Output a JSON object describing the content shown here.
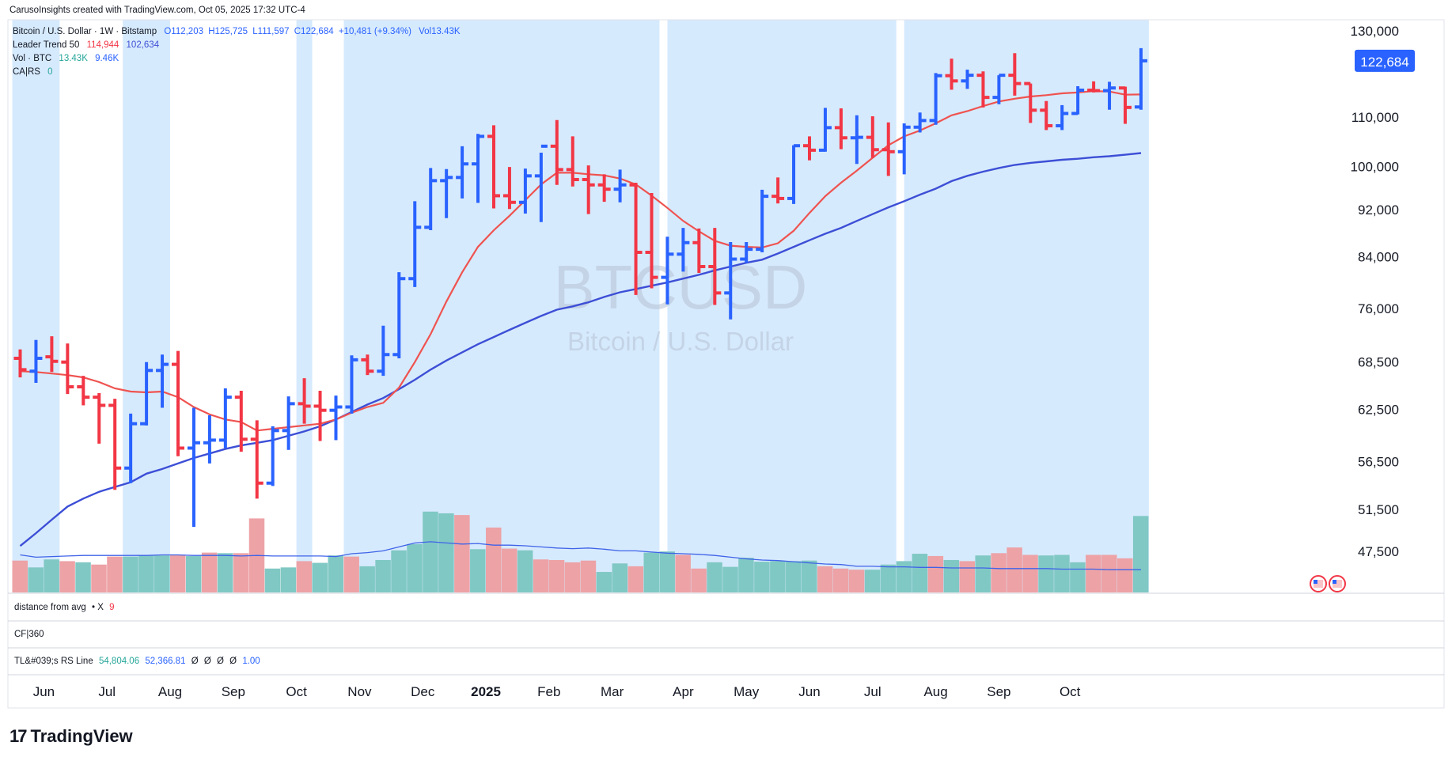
{
  "header": {
    "attribution": "CarusoInsights created with TradingView.com, Oct 05, 2025 17:32 UTC-4"
  },
  "legend": {
    "symbol": "Bitcoin / U.S. Dollar · 1W · Bitstamp",
    "ohlc": {
      "o": "O112,203",
      "h": "H125,725",
      "l": "L111,597",
      "c": "C122,684",
      "chg": "+10,481 (+9.34%)",
      "vol": "Vol13.43K"
    },
    "leader_trend": {
      "label": "Leader Trend 50",
      "v1": "114,944",
      "v2": "102,634"
    },
    "vol_btc": {
      "label": "Vol · BTC",
      "v1": "13.43K",
      "v2": "9.46K"
    },
    "cars": {
      "label": "CA|RS",
      "v1": "0"
    }
  },
  "watermark": {
    "symbol": "BTCUSD",
    "name": "Bitcoin / U.S. Dollar"
  },
  "price_axis": {
    "ticks": [
      "130,000",
      "110,000",
      "100,000",
      "92,000",
      "84,000",
      "76,000",
      "68,500",
      "62,500",
      "56,500",
      "51,500",
      "47,500"
    ],
    "tick_values": [
      130000,
      110000,
      100000,
      92000,
      84000,
      76000,
      68500,
      62500,
      56500,
      51500,
      47500
    ],
    "last_price_label": "122,684"
  },
  "time_axis": {
    "labels": [
      "Jun",
      "Jul",
      "Aug",
      "Sep",
      "Oct",
      "Nov",
      "Dec",
      "2025",
      "Feb",
      "Mar",
      "Apr",
      "May",
      "Jun",
      "Jul",
      "Aug",
      "Sep",
      "Oct"
    ],
    "label_bar_index": [
      1.5,
      5.5,
      9.5,
      13.5,
      17.5,
      21.5,
      25.5,
      29.5,
      33.5,
      37.5,
      42,
      46,
      50,
      54,
      58,
      62,
      66.5
    ]
  },
  "panes": {
    "distance": {
      "label": "distance from avg",
      "suffix": "• X",
      "value": "9"
    },
    "cf": {
      "label": "CF|360"
    },
    "tl_rs": {
      "label": "TL&#039;s RS Line",
      "v1": "54,804.06",
      "v2": "52,366.81",
      "v3": "Ø",
      "v4": "Ø",
      "v5": "Ø",
      "v6": "Ø",
      "v7": "1.00"
    }
  },
  "footer": {
    "brand": "TradingView",
    "brand_mark": "17"
  },
  "colors": {
    "up": "#2962ff",
    "down": "#f23645",
    "ma_short": "#ef5350",
    "ma_long": "#3d4fd6",
    "vol_up": "#80c8c4",
    "vol_down": "#eda2a6",
    "highlight": "#d6eafd",
    "vol_ma": "#3f63e8"
  },
  "chart_data": {
    "type": "ohlc",
    "title": "Bitcoin / U.S. Dollar · 1W · Bitstamp",
    "interval": "1W",
    "ylim": [
      44000,
      132000
    ],
    "y_scale": "log",
    "grid": false,
    "bars": [
      {
        "o": 69000,
        "h": 70200,
        "l": 66500,
        "c": 67500
      },
      {
        "o": 67300,
        "h": 71500,
        "l": 65800,
        "c": 69000
      },
      {
        "o": 69200,
        "h": 72000,
        "l": 67200,
        "c": 68600
      },
      {
        "o": 68500,
        "h": 71000,
        "l": 64400,
        "c": 65300
      },
      {
        "o": 65300,
        "h": 66700,
        "l": 63000,
        "c": 64000
      },
      {
        "o": 64000,
        "h": 64500,
        "l": 58500,
        "c": 63000
      },
      {
        "o": 63000,
        "h": 63800,
        "l": 53500,
        "c": 55800
      },
      {
        "o": 55800,
        "h": 62000,
        "l": 54200,
        "c": 60800
      },
      {
        "o": 60800,
        "h": 68500,
        "l": 60600,
        "c": 67400
      },
      {
        "o": 67400,
        "h": 69500,
        "l": 62700,
        "c": 68200
      },
      {
        "o": 68200,
        "h": 70000,
        "l": 57100,
        "c": 58000
      },
      {
        "o": 58000,
        "h": 62700,
        "l": 49800,
        "c": 58600
      },
      {
        "o": 58600,
        "h": 61800,
        "l": 56300,
        "c": 58900
      },
      {
        "o": 58900,
        "h": 65100,
        "l": 58000,
        "c": 64000
      },
      {
        "o": 64000,
        "h": 64800,
        "l": 57600,
        "c": 59000
      },
      {
        "o": 59000,
        "h": 61200,
        "l": 52600,
        "c": 54200
      },
      {
        "o": 54200,
        "h": 60500,
        "l": 53900,
        "c": 60000
      },
      {
        "o": 60000,
        "h": 64100,
        "l": 57800,
        "c": 63200
      },
      {
        "o": 63200,
        "h": 66400,
        "l": 60800,
        "c": 62900
      },
      {
        "o": 62900,
        "h": 64800,
        "l": 58800,
        "c": 62400
      },
      {
        "o": 62400,
        "h": 64200,
        "l": 58900,
        "c": 62800
      },
      {
        "o": 62800,
        "h": 69400,
        "l": 62000,
        "c": 68800
      },
      {
        "o": 68800,
        "h": 69500,
        "l": 66800,
        "c": 67300
      },
      {
        "o": 67300,
        "h": 73500,
        "l": 66700,
        "c": 69500
      },
      {
        "o": 69500,
        "h": 81500,
        "l": 69000,
        "c": 80500
      },
      {
        "o": 80500,
        "h": 93500,
        "l": 79200,
        "c": 88900
      },
      {
        "o": 88900,
        "h": 99700,
        "l": 88400,
        "c": 97300
      },
      {
        "o": 97300,
        "h": 99500,
        "l": 90500,
        "c": 97900
      },
      {
        "o": 97900,
        "h": 104000,
        "l": 94000,
        "c": 100500
      },
      {
        "o": 100500,
        "h": 106500,
        "l": 93200,
        "c": 106000
      },
      {
        "o": 106000,
        "h": 108300,
        "l": 92200,
        "c": 94500
      },
      {
        "o": 94500,
        "h": 99900,
        "l": 92100,
        "c": 93300
      },
      {
        "o": 93300,
        "h": 99600,
        "l": 91300,
        "c": 98200
      },
      {
        "o": 98200,
        "h": 102700,
        "l": 89800,
        "c": 104000
      },
      {
        "o": 104000,
        "h": 109400,
        "l": 96500,
        "c": 99400
      },
      {
        "o": 99400,
        "h": 106000,
        "l": 96200,
        "c": 97500
      },
      {
        "o": 97500,
        "h": 100200,
        "l": 91200,
        "c": 96500
      },
      {
        "o": 96500,
        "h": 98500,
        "l": 93400,
        "c": 95700
      },
      {
        "o": 95700,
        "h": 99400,
        "l": 93300,
        "c": 96500
      },
      {
        "o": 96500,
        "h": 96900,
        "l": 78000,
        "c": 84700
      },
      {
        "o": 84700,
        "h": 95000,
        "l": 79000,
        "c": 80700
      },
      {
        "o": 80700,
        "h": 87300,
        "l": 76600,
        "c": 84400
      },
      {
        "o": 84400,
        "h": 88800,
        "l": 81600,
        "c": 86300
      },
      {
        "o": 86300,
        "h": 88700,
        "l": 81400,
        "c": 82400
      },
      {
        "o": 82400,
        "h": 88800,
        "l": 76500,
        "c": 78300
      },
      {
        "o": 78300,
        "h": 86400,
        "l": 74400,
        "c": 83600
      },
      {
        "o": 83600,
        "h": 86400,
        "l": 83000,
        "c": 85200
      },
      {
        "o": 85200,
        "h": 95600,
        "l": 84700,
        "c": 94400
      },
      {
        "o": 94400,
        "h": 97900,
        "l": 93100,
        "c": 94000
      },
      {
        "o": 94000,
        "h": 104200,
        "l": 93000,
        "c": 104100
      },
      {
        "o": 104100,
        "h": 106000,
        "l": 101200,
        "c": 103200
      },
      {
        "o": 103200,
        "h": 112000,
        "l": 102900,
        "c": 107800
      },
      {
        "o": 107800,
        "h": 111900,
        "l": 103400,
        "c": 105700
      },
      {
        "o": 105700,
        "h": 110400,
        "l": 100500,
        "c": 105800
      },
      {
        "o": 105800,
        "h": 110200,
        "l": 101700,
        "c": 103300
      },
      {
        "o": 103300,
        "h": 108900,
        "l": 98200,
        "c": 102900
      },
      {
        "o": 102900,
        "h": 108700,
        "l": 98500,
        "c": 107900
      },
      {
        "o": 107900,
        "h": 111000,
        "l": 106800,
        "c": 109300
      },
      {
        "o": 109300,
        "h": 119800,
        "l": 108400,
        "c": 119200
      },
      {
        "o": 119200,
        "h": 123200,
        "l": 116000,
        "c": 118000
      },
      {
        "o": 118000,
        "h": 120600,
        "l": 116200,
        "c": 119300
      },
      {
        "o": 119300,
        "h": 120200,
        "l": 112100,
        "c": 114300
      },
      {
        "o": 114300,
        "h": 119300,
        "l": 112800,
        "c": 119300
      },
      {
        "o": 119300,
        "h": 124500,
        "l": 114700,
        "c": 117400
      },
      {
        "o": 117400,
        "h": 117400,
        "l": 108800,
        "c": 111500
      },
      {
        "o": 111500,
        "h": 113500,
        "l": 107300,
        "c": 108200
      },
      {
        "o": 108200,
        "h": 112600,
        "l": 107300,
        "c": 110800
      },
      {
        "o": 110800,
        "h": 116800,
        "l": 110600,
        "c": 115900
      },
      {
        "o": 115900,
        "h": 117900,
        "l": 115400,
        "c": 115800
      },
      {
        "o": 115800,
        "h": 117800,
        "l": 111600,
        "c": 116400
      },
      {
        "o": 116400,
        "h": 116700,
        "l": 108600,
        "c": 112100
      },
      {
        "o": 112200,
        "h": 125725,
        "l": 111597,
        "c": 122684
      }
    ],
    "ma_short": [
      67300,
      67200,
      67000,
      66800,
      66500,
      65900,
      65100,
      64700,
      64600,
      64700,
      64000,
      62800,
      61900,
      61300,
      61000,
      60000,
      60200,
      60400,
      60600,
      60800,
      61300,
      62100,
      62800,
      63300,
      65200,
      68500,
      72300,
      77000,
      81500,
      85600,
      88400,
      90900,
      93700,
      96600,
      98800,
      98800,
      98500,
      98300,
      97700,
      96600,
      94500,
      92300,
      90000,
      88200,
      86600,
      85800,
      85600,
      85500,
      86200,
      88300,
      91400,
      94400,
      96900,
      99200,
      101700,
      104200,
      106000,
      107200,
      108700,
      110400,
      111300,
      112400,
      113400,
      114000,
      114500,
      114800,
      115200,
      115400,
      115700,
      115600,
      114900,
      114944
    ],
    "ma_long": [
      48000,
      49200,
      50500,
      51800,
      52600,
      53300,
      53800,
      54300,
      55200,
      55700,
      56300,
      56900,
      57400,
      57900,
      58300,
      58600,
      58900,
      59400,
      59900,
      60500,
      61300,
      62200,
      63100,
      63900,
      65000,
      66200,
      67500,
      68700,
      69800,
      70900,
      71900,
      72900,
      73900,
      74900,
      75800,
      76300,
      76900,
      77700,
      78400,
      78900,
      79400,
      79900,
      80500,
      81100,
      81800,
      82400,
      83000,
      83500,
      84500,
      85600,
      86700,
      87800,
      88800,
      90000,
      91200,
      92400,
      93500,
      94700,
      95800,
      97200,
      98200,
      99000,
      99700,
      100300,
      100700,
      101000,
      101300,
      101500,
      101800,
      102000,
      102300,
      102634
    ],
    "volume_label": "Vol · BTC",
    "volume": [
      5.6,
      4.4,
      5.8,
      5.5,
      5.3,
      4.9,
      6.3,
      6.3,
      6.5,
      6.5,
      6.6,
      6.4,
      7.0,
      6.9,
      6.9,
      13.0,
      4.2,
      4.4,
      5.5,
      5.2,
      6.5,
      6.3,
      4.6,
      5.7,
      7.4,
      8.5,
      14.2,
      13.9,
      13.6,
      7.6,
      11.4,
      7.7,
      7.4,
      5.8,
      5.7,
      5.3,
      5.6,
      3.6,
      5.1,
      4.6,
      7.0,
      7.2,
      6.6,
      4.2,
      5.3,
      4.5,
      6.1,
      5.4,
      5.5,
      5.5,
      5.6,
      4.6,
      4.2,
      4.0,
      4.0,
      4.9,
      5.5,
      6.8,
      6.4,
      5.7,
      5.5,
      6.5,
      6.9,
      7.9,
      6.6,
      6.5,
      6.6,
      5.3,
      6.6,
      6.6,
      6.0,
      13.43
    ],
    "volume_up": [
      false,
      true,
      true,
      false,
      true,
      false,
      false,
      true,
      true,
      true,
      false,
      true,
      false,
      true,
      false,
      false,
      true,
      true,
      false,
      true,
      true,
      false,
      true,
      true,
      true,
      true,
      true,
      true,
      false,
      true,
      false,
      false,
      true,
      false,
      false,
      false,
      false,
      true,
      true,
      false,
      true,
      true,
      false,
      false,
      true,
      true,
      true,
      true,
      true,
      true,
      true,
      false,
      false,
      false,
      true,
      true,
      true,
      true,
      false,
      true,
      false,
      true,
      false,
      false,
      false,
      true,
      true,
      true,
      false,
      false,
      false,
      true
    ],
    "volume_ma": [
      6.6,
      6.2,
      6.3,
      6.4,
      6.5,
      6.5,
      6.5,
      6.5,
      6.5,
      6.6,
      6.6,
      6.5,
      6.5,
      6.5,
      6.4,
      6.5,
      6.4,
      6.4,
      6.4,
      6.4,
      6.3,
      6.8,
      7.0,
      7.3,
      8.0,
      8.7,
      8.9,
      8.7,
      8.5,
      8.6,
      8.3,
      8.3,
      8.2,
      8.0,
      7.8,
      7.7,
      7.8,
      7.6,
      7.3,
      7.3,
      7.1,
      6.9,
      6.8,
      6.7,
      6.5,
      6.2,
      5.9,
      5.7,
      5.6,
      5.4,
      5.2,
      5.0,
      4.9,
      4.6,
      4.6,
      4.5,
      4.5,
      4.4,
      4.4,
      4.3,
      4.3,
      4.3,
      4.2,
      4.2,
      4.2,
      4.2,
      4.1,
      4.1,
      4.1,
      4.0,
      4.0,
      4.0
    ],
    "highlight_bar_ranges": [
      [
        -0.5,
        2.5
      ],
      [
        6.5,
        9.5
      ],
      [
        17.5,
        18.5
      ],
      [
        20.5,
        40.5
      ],
      [
        41,
        55.5
      ],
      [
        56,
        71.5
      ]
    ]
  }
}
